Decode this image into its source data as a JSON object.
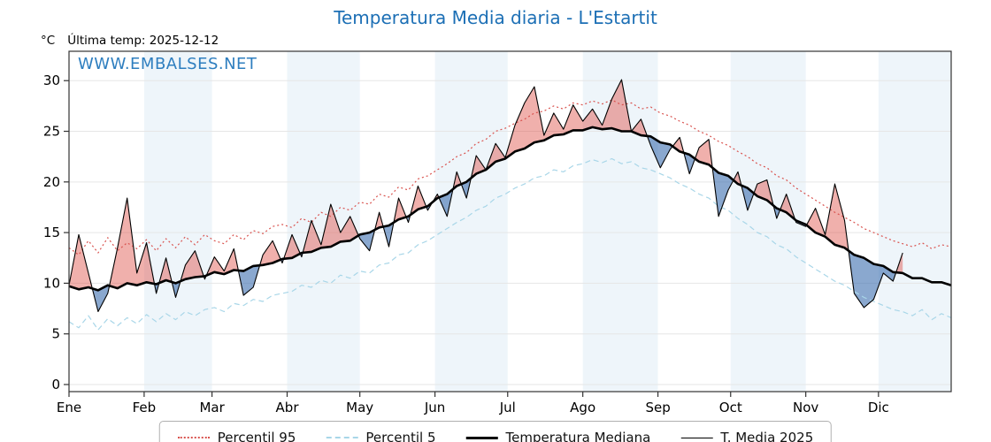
{
  "header": {
    "title": "Temperatura Media diaria - L'Estartit",
    "units": "°C",
    "last_temp": "Última temp: 2025-12-12"
  },
  "watermark": {
    "text": "WWW.EMBALSES.NET",
    "color": "#2e7ebf"
  },
  "colors": {
    "title": "#1c6fb5",
    "axis": "#333333",
    "grid": "#e6e6e6",
    "band": "#eef5fa",
    "fill_above": "rgba(222,80,70,0.45)",
    "fill_below": "rgba(60,110,175,0.60)"
  },
  "legend": {
    "items": [
      {
        "label": "Percentil 95",
        "series": "p95"
      },
      {
        "label": "Percentil 5",
        "series": "p5"
      },
      {
        "label": "Temperatura Mediana",
        "series": "median"
      },
      {
        "label": "T. Media 2025",
        "series": "t2025"
      }
    ]
  },
  "chart_data": {
    "type": "line",
    "title": "Temperatura Media diaria - L'Estartit",
    "ylabel": "°C",
    "yticks": [
      0,
      5,
      10,
      15,
      20,
      25,
      30
    ],
    "ylim": [
      0,
      30
    ],
    "x_unit": "day_of_year_2025",
    "month_labels": [
      "Ene",
      "Feb",
      "Mar",
      "Abr",
      "May",
      "Jun",
      "Jul",
      "Ago",
      "Sep",
      "Oct",
      "Nov",
      "Dic"
    ],
    "month_start_days": [
      1,
      32,
      60,
      91,
      121,
      152,
      182,
      213,
      244,
      274,
      305,
      335
    ],
    "grid": true,
    "legend_position": "bottom",
    "x": [
      1,
      5,
      9,
      13,
      17,
      21,
      25,
      29,
      33,
      37,
      41,
      45,
      49,
      53,
      57,
      61,
      65,
      69,
      73,
      77,
      81,
      85,
      89,
      93,
      97,
      101,
      105,
      109,
      113,
      117,
      121,
      125,
      129,
      133,
      137,
      141,
      145,
      149,
      153,
      157,
      161,
      165,
      169,
      173,
      177,
      181,
      185,
      189,
      193,
      197,
      201,
      205,
      209,
      213,
      217,
      221,
      225,
      229,
      233,
      237,
      241,
      245,
      249,
      253,
      257,
      261,
      265,
      269,
      273,
      277,
      281,
      285,
      289,
      293,
      297,
      301,
      305,
      309,
      313,
      317,
      321,
      325,
      329,
      333,
      337,
      341,
      345,
      349,
      353,
      357,
      361,
      365
    ],
    "series": [
      {
        "name": "Percentil 95",
        "color": "#d9534f",
        "line": "dotted",
        "width": 1.2,
        "values": [
          13.5,
          12.8,
          14.2,
          13.0,
          14.5,
          13.2,
          14.0,
          13.4,
          14.3,
          13.2,
          14.4,
          13.5,
          14.6,
          13.8,
          14.8,
          14.2,
          13.9,
          14.8,
          14.3,
          15.2,
          14.9,
          15.6,
          15.8,
          15.5,
          16.4,
          16.0,
          17.0,
          16.6,
          17.5,
          17.2,
          18.0,
          17.8,
          18.8,
          18.5,
          19.5,
          19.2,
          20.3,
          20.6,
          21.2,
          21.8,
          22.5,
          22.9,
          23.8,
          24.2,
          25.0,
          25.3,
          25.8,
          26.2,
          26.8,
          27.0,
          27.5,
          27.2,
          27.8,
          27.6,
          28.0,
          27.7,
          28.1,
          27.6,
          27.8,
          27.2,
          27.4,
          26.8,
          26.5,
          26.0,
          25.6,
          25.0,
          24.6,
          24.0,
          23.6,
          23.0,
          22.5,
          21.8,
          21.4,
          20.6,
          20.2,
          19.4,
          18.8,
          18.2,
          17.6,
          17.0,
          16.5,
          16.0,
          15.4,
          15.0,
          14.6,
          14.2,
          13.9,
          13.6,
          14.0,
          13.4,
          13.8,
          13.6
        ]
      },
      {
        "name": "Percentil 5",
        "color": "#a8d6e8",
        "line": "dashed",
        "width": 1.2,
        "values": [
          6.2,
          5.6,
          6.8,
          5.4,
          6.5,
          5.8,
          6.6,
          6.0,
          6.9,
          6.2,
          7.0,
          6.4,
          7.2,
          6.8,
          7.4,
          7.6,
          7.2,
          8.0,
          7.8,
          8.4,
          8.2,
          8.8,
          9.0,
          9.2,
          9.8,
          9.6,
          10.3,
          10.0,
          10.8,
          10.5,
          11.2,
          11.0,
          11.8,
          12.0,
          12.8,
          13.0,
          13.8,
          14.2,
          14.8,
          15.4,
          16.0,
          16.5,
          17.2,
          17.6,
          18.4,
          18.8,
          19.4,
          19.8,
          20.4,
          20.6,
          21.2,
          21.0,
          21.6,
          21.8,
          22.2,
          21.9,
          22.3,
          21.8,
          22.0,
          21.4,
          21.2,
          20.8,
          20.4,
          19.8,
          19.4,
          18.8,
          18.4,
          17.6,
          17.2,
          16.4,
          15.8,
          15.0,
          14.6,
          13.8,
          13.4,
          12.6,
          12.0,
          11.4,
          10.8,
          10.2,
          9.8,
          9.2,
          8.6,
          8.2,
          7.8,
          7.4,
          7.2,
          6.8,
          7.4,
          6.4,
          7.0,
          6.6
        ]
      },
      {
        "name": "Temperatura Mediana",
        "color": "#000000",
        "line": "solid",
        "width": 2.6,
        "values": [
          9.7,
          9.4,
          9.6,
          9.3,
          9.8,
          9.5,
          10.0,
          9.8,
          10.1,
          9.9,
          10.3,
          10.0,
          10.4,
          10.6,
          10.7,
          11.1,
          10.9,
          11.3,
          11.2,
          11.7,
          11.8,
          12.0,
          12.4,
          12.5,
          13.0,
          13.1,
          13.5,
          13.6,
          14.1,
          14.2,
          14.8,
          15.0,
          15.5,
          15.7,
          16.3,
          16.6,
          17.3,
          17.6,
          18.4,
          18.8,
          19.6,
          20.0,
          20.8,
          21.2,
          22.0,
          22.3,
          23.0,
          23.3,
          23.9,
          24.1,
          24.6,
          24.7,
          25.1,
          25.1,
          25.4,
          25.2,
          25.3,
          25.0,
          25.0,
          24.6,
          24.5,
          23.9,
          23.7,
          23.0,
          22.7,
          22.0,
          21.7,
          20.9,
          20.6,
          19.8,
          19.4,
          18.6,
          18.2,
          17.4,
          17.0,
          16.2,
          15.8,
          15.0,
          14.6,
          13.8,
          13.5,
          12.8,
          12.5,
          11.9,
          11.7,
          11.1,
          11.0,
          10.5,
          10.5,
          10.1,
          10.1,
          9.8
        ]
      },
      {
        "name": "T. Media 2025",
        "color": "#000000",
        "line": "solid",
        "width": 1.1,
        "values": [
          9.8,
          14.8,
          11.0,
          7.2,
          9.0,
          13.5,
          18.4,
          11.0,
          14.0,
          9.0,
          12.5,
          8.6,
          11.8,
          13.2,
          10.4,
          12.6,
          11.2,
          13.4,
          8.8,
          9.6,
          12.8,
          14.2,
          12.0,
          14.8,
          12.6,
          16.2,
          13.8,
          17.8,
          15.0,
          16.6,
          14.4,
          13.2,
          17.0,
          13.6,
          18.4,
          16.0,
          19.6,
          17.2,
          18.8,
          16.6,
          21.0,
          18.4,
          22.6,
          21.2,
          23.8,
          22.4,
          25.6,
          27.8,
          29.4,
          24.6,
          26.8,
          25.2,
          27.6,
          26.0,
          27.2,
          25.6,
          28.2,
          30.1,
          25.0,
          26.2,
          23.6,
          21.4,
          23.2,
          24.4,
          20.8,
          23.4,
          24.2,
          16.6,
          19.2,
          21.0,
          17.2,
          19.8,
          20.2,
          16.4,
          18.8,
          16.0,
          15.6,
          17.4,
          14.8,
          19.8,
          16.2,
          9.0,
          7.6,
          8.4,
          11.0,
          10.2,
          13.0,
          null,
          null,
          null,
          null,
          null
        ]
      }
    ],
    "fills": {
      "above": "T. Media 2025 > Temperatura Mediana",
      "below": "T. Media 2025 < Temperatura Mediana"
    }
  }
}
